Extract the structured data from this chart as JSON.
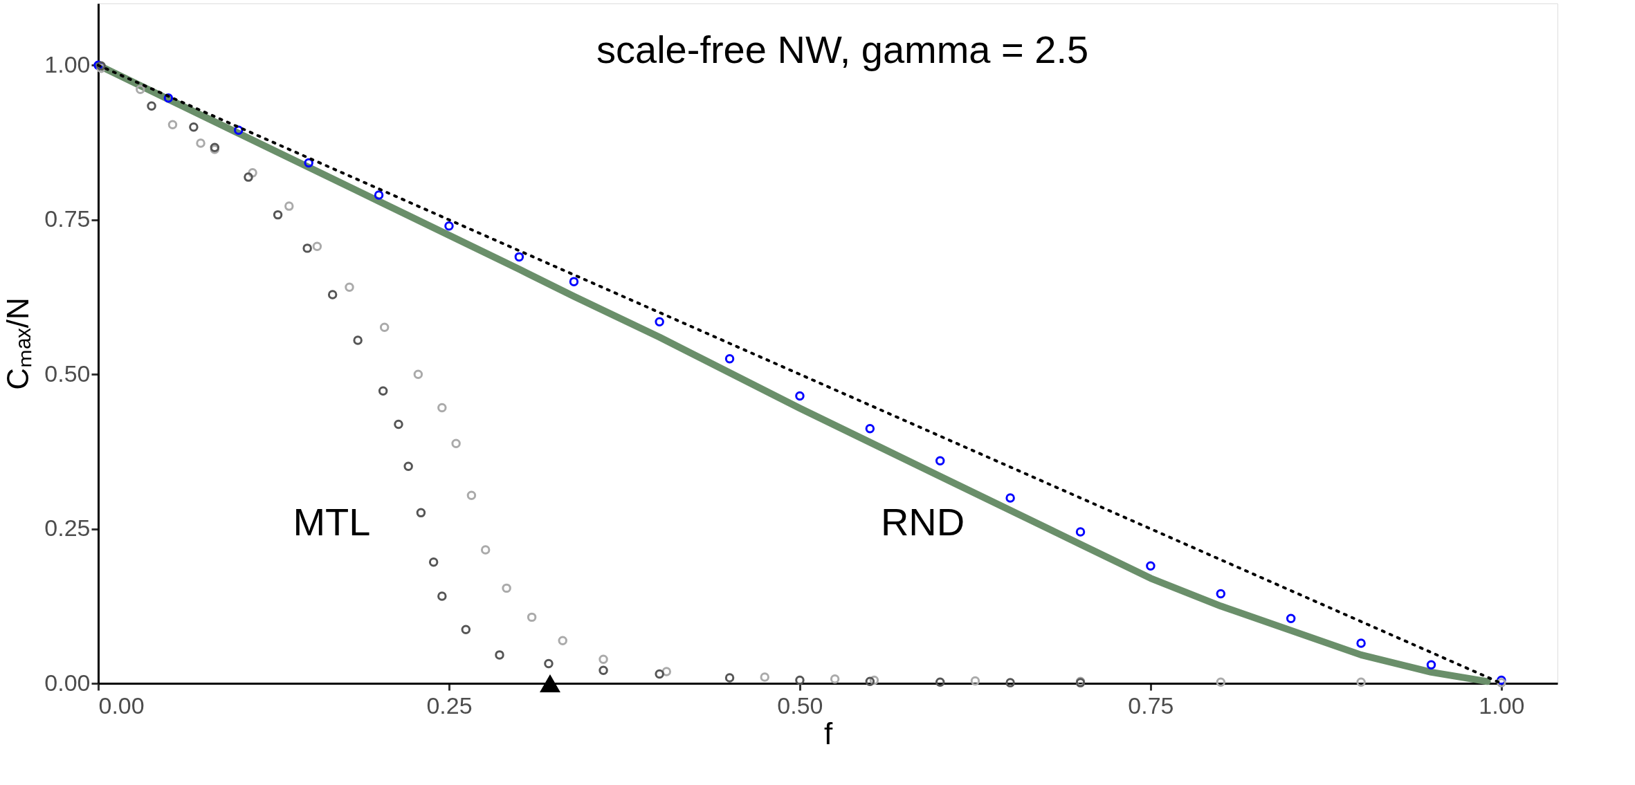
{
  "chart_data": {
    "type": "scatter",
    "title": "scale-free NW, gamma = 2.5",
    "xlabel": "f",
    "ylabel": "Cₘₐₓ/N",
    "xlim": [
      0,
      1.04
    ],
    "ylim": [
      0,
      1.1
    ],
    "xticks": [
      {
        "value": 0,
        "label": "0.00"
      },
      {
        "value": 0.25,
        "label": "0.25"
      },
      {
        "value": 0.5,
        "label": "0.50"
      },
      {
        "value": 0.75,
        "label": "0.75"
      },
      {
        "value": 1,
        "label": "1.00"
      }
    ],
    "yticks": [
      {
        "value": 0,
        "label": "0.00"
      },
      {
        "value": 0.25,
        "label": "0.25"
      },
      {
        "value": 0.5,
        "label": "0.50"
      },
      {
        "value": 0.75,
        "label": "0.75"
      },
      {
        "value": 1,
        "label": "1.00"
      }
    ],
    "grid": false,
    "annotations": [
      "MTL",
      "RND"
    ],
    "series": [
      {
        "type": "line",
        "color": "#6a8f6a",
        "marker": "none",
        "line_style": "solid",
        "x": [
          0,
          0.1,
          0.2,
          0.3,
          0.339,
          0.4,
          0.5,
          0.6,
          0.7,
          0.75,
          0.8,
          0.9,
          0.95,
          0.99
        ],
        "values": [
          1,
          0.89,
          0.78,
          0.67,
          0.626,
          0.56,
          0.445,
          0.335,
          0.225,
          0.17,
          0.125,
          0.046,
          0.018,
          0.003
        ]
      },
      {
        "type": "scatter",
        "color": "#0000ff",
        "marker": "circle",
        "x": [
          0,
          0.05,
          0.1,
          0.15,
          0.2,
          0.25,
          0.3,
          0.339,
          0.4,
          0.45,
          0.5,
          0.55,
          0.6,
          0.65,
          0.7,
          0.75,
          0.8,
          0.85,
          0.9,
          0.95,
          1
        ],
        "values": [
          1,
          0.947,
          0.895,
          0.842,
          0.79,
          0.74,
          0.69,
          0.65,
          0.585,
          0.525,
          0.465,
          0.412,
          0.36,
          0.3,
          0.245,
          0.19,
          0.145,
          0.105,
          0.065,
          0.03,
          0.005
        ]
      },
      {
        "type": "scatter",
        "color": "#aaaaaa",
        "marker": "circle",
        "x": [
          0.002,
          0.03,
          0.053,
          0.073,
          0.083,
          0.11,
          0.136,
          0.156,
          0.179,
          0.204,
          0.228,
          0.245,
          0.255,
          0.266,
          0.276,
          0.291,
          0.309,
          0.331,
          0.36,
          0.405,
          0.475,
          0.525,
          0.553,
          0.625,
          0.7,
          0.8,
          0.9,
          1
        ],
        "values": [
          0.995,
          0.961,
          0.904,
          0.874,
          0.864,
          0.826,
          0.772,
          0.707,
          0.641,
          0.576,
          0.5,
          0.446,
          0.388,
          0.304,
          0.216,
          0.154,
          0.107,
          0.069,
          0.039,
          0.019,
          0.01,
          0.007,
          0.005,
          0.004,
          0.003,
          0.002,
          0.002,
          0.001
        ]
      },
      {
        "type": "scatter",
        "color": "#555555",
        "marker": "circle",
        "x": [
          0.002,
          0.038,
          0.068,
          0.083,
          0.107,
          0.128,
          0.149,
          0.167,
          0.185,
          0.203,
          0.214,
          0.221,
          0.23,
          0.239,
          0.245,
          0.262,
          0.286,
          0.321,
          0.36,
          0.4,
          0.45,
          0.5,
          0.55,
          0.6,
          0.65,
          0.7
        ],
        "values": [
          0.999,
          0.934,
          0.9,
          0.867,
          0.819,
          0.758,
          0.704,
          0.629,
          0.555,
          0.473,
          0.419,
          0.351,
          0.276,
          0.196,
          0.141,
          0.087,
          0.046,
          0.032,
          0.021,
          0.015,
          0.009,
          0.005,
          0.003,
          0.002,
          0.001,
          0.001
        ]
      },
      {
        "type": "line",
        "color": "#000000",
        "marker": "none",
        "line_style": "dotted",
        "x": [
          0,
          1
        ],
        "values": [
          1,
          0
        ]
      },
      {
        "type": "scatter",
        "color": "#000000",
        "marker": "triangle",
        "x": [
          0.322
        ],
        "values": [
          0
        ]
      }
    ]
  }
}
